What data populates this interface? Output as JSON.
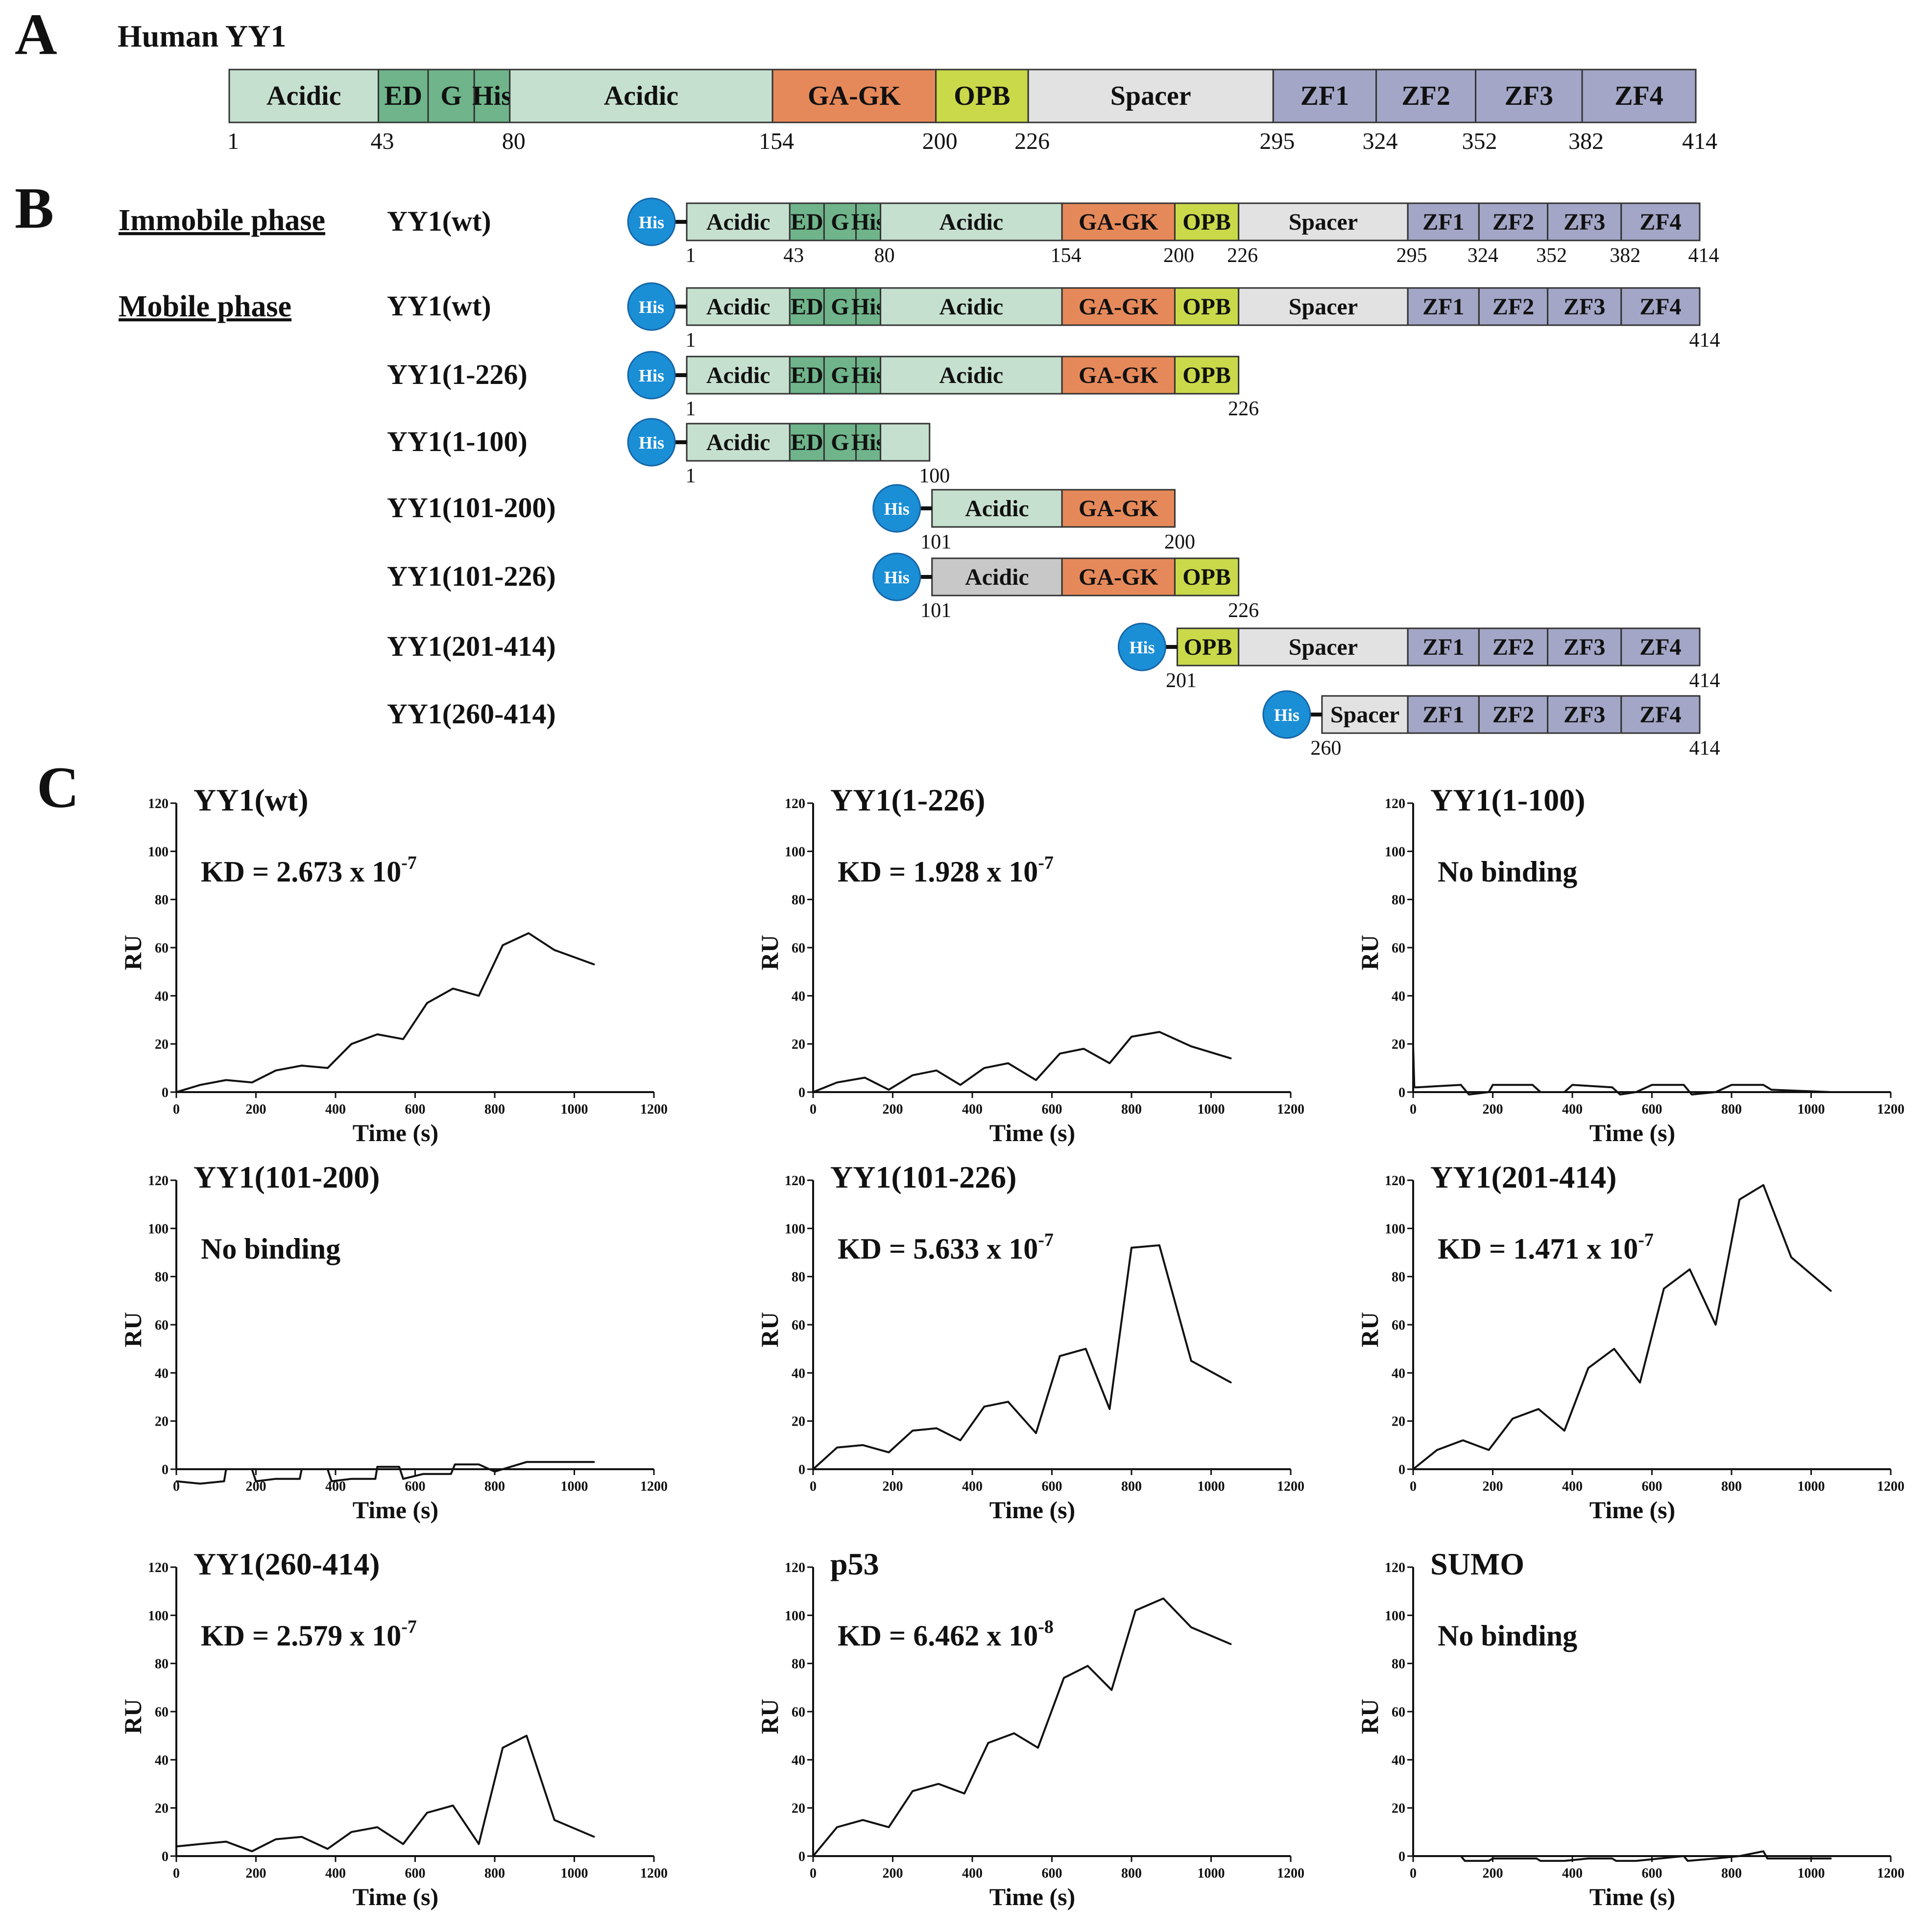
{
  "panel_labels": {
    "a": "A",
    "b": "B",
    "c": "C"
  },
  "panel_a": {
    "title": "Human YY1",
    "domains": [
      {
        "label": "Acidic",
        "start": 1,
        "end": 43,
        "color": "#c6e0cf"
      },
      {
        "label": "ED",
        "start": 43,
        "end": 57,
        "color": "#6fb48a"
      },
      {
        "label": "G",
        "start": 57,
        "end": 70,
        "color": "#6fb48a"
      },
      {
        "label": "His",
        "start": 70,
        "end": 80,
        "color": "#6fb48a"
      },
      {
        "label": "Acidic",
        "start": 80,
        "end": 154,
        "color": "#c6e0cf"
      },
      {
        "label": "GA-GK",
        "start": 154,
        "end": 200,
        "color": "#e6895a"
      },
      {
        "label": "OPB",
        "start": 200,
        "end": 226,
        "color": "#c9d94a"
      },
      {
        "label": "Spacer",
        "start": 226,
        "end": 295,
        "color": "#e2e2e2"
      },
      {
        "label": "ZF1",
        "start": 295,
        "end": 324,
        "color": "#a3a6c6"
      },
      {
        "label": "ZF2",
        "start": 324,
        "end": 352,
        "color": "#a3a6c6"
      },
      {
        "label": "ZF3",
        "start": 352,
        "end": 382,
        "color": "#a3a6c6"
      },
      {
        "label": "ZF4",
        "start": 382,
        "end": 414,
        "color": "#a3a6c6"
      }
    ],
    "positions": [
      "1",
      "43",
      "80",
      "154",
      "200",
      "226",
      "295",
      "324",
      "352",
      "382",
      "414"
    ]
  },
  "panel_b": {
    "immobile_label": "Immobile phase",
    "mobile_label": "Mobile phase",
    "tag_label": "His",
    "constructs": [
      {
        "name": "YY1(wt)",
        "start": 1,
        "end": 414,
        "numbers": [
          "1",
          "43",
          "80",
          "154",
          "200",
          "226",
          "295",
          "324",
          "352",
          "382",
          "414"
        ]
      },
      {
        "name": "YY1(wt)",
        "start": 1,
        "end": 414,
        "numbers": [
          "1",
          "414"
        ]
      },
      {
        "name": "YY1(1-226)",
        "start": 1,
        "end": 226,
        "numbers": [
          "1",
          "226"
        ]
      },
      {
        "name": "YY1(1-100)",
        "start": 1,
        "end": 100,
        "numbers": [
          "1",
          "100"
        ]
      },
      {
        "name": "YY1(101-200)",
        "start": 101,
        "end": 200,
        "numbers": [
          "101",
          "200"
        ]
      },
      {
        "name": "YY1(101-226)",
        "start": 101,
        "end": 226,
        "numbers": [
          "101",
          "226"
        ]
      },
      {
        "name": "YY1(201-414)",
        "start": 201,
        "end": 414,
        "numbers": [
          "201",
          "414"
        ]
      },
      {
        "name": "YY1(260-414)",
        "start": 260,
        "end": 414,
        "numbers": [
          "260",
          "414"
        ]
      }
    ]
  },
  "chart_data": [
    {
      "type": "line",
      "title": "YY1(wt)",
      "annotation": "KD = 2.673 x 10",
      "annotation_exp": "-7",
      "xlabel": "Time (s)",
      "ylabel": "RU",
      "xlim": [
        0,
        1200
      ],
      "ylim": [
        0,
        120
      ],
      "x_ticks": [
        "0",
        "200",
        "400",
        "600",
        "800",
        "1000",
        "1200"
      ],
      "y_ticks": [
        "0",
        "20",
        "40",
        "60",
        "80",
        "100",
        "120"
      ],
      "x": [
        0,
        60,
        125,
        190,
        250,
        315,
        380,
        440,
        505,
        570,
        630,
        695,
        760,
        820,
        885,
        950,
        1050
      ],
      "y": [
        0,
        3,
        5,
        4,
        9,
        11,
        10,
        20,
        24,
        22,
        37,
        43,
        40,
        61,
        66,
        59,
        53
      ]
    },
    {
      "type": "line",
      "title": "YY1(1-226)",
      "annotation": "KD = 1.928 x 10",
      "annotation_exp": "-7",
      "xlabel": "Time (s)",
      "ylabel": "RU",
      "xlim": [
        0,
        1200
      ],
      "ylim": [
        0,
        120
      ],
      "x_ticks": [
        "0",
        "200",
        "400",
        "600",
        "800",
        "1000",
        "1200"
      ],
      "y_ticks": [
        "0",
        "20",
        "40",
        "60",
        "80",
        "100",
        "120"
      ],
      "x": [
        0,
        60,
        130,
        190,
        250,
        310,
        370,
        430,
        490,
        560,
        620,
        680,
        745,
        800,
        870,
        950,
        1050
      ],
      "y": [
        0,
        4,
        6,
        1,
        7,
        9,
        3,
        10,
        12,
        5,
        16,
        18,
        12,
        23,
        25,
        19,
        14
      ]
    },
    {
      "type": "line",
      "title": "YY1(1-100)",
      "annotation": "No binding",
      "annotation_exp": "",
      "xlabel": "Time (s)",
      "ylabel": "RU",
      "xlim": [
        0,
        1200
      ],
      "ylim": [
        0,
        120
      ],
      "x_ticks": [
        "0",
        "200",
        "400",
        "600",
        "800",
        "1000",
        "1200"
      ],
      "y_ticks": [
        "0",
        "20",
        "40",
        "60",
        "80",
        "100",
        "120"
      ],
      "x": [
        0,
        3,
        10,
        120,
        140,
        190,
        200,
        300,
        320,
        380,
        400,
        500,
        520,
        560,
        600,
        680,
        700,
        760,
        800,
        880,
        900,
        1050
      ],
      "y": [
        19,
        2,
        2,
        3,
        -1,
        0,
        3,
        3,
        0,
        0,
        3,
        2,
        -1,
        0,
        3,
        3,
        -1,
        0,
        3,
        3,
        1,
        0
      ]
    },
    {
      "type": "line",
      "title": "YY1(101-200)",
      "annotation": "No binding",
      "annotation_exp": "",
      "xlabel": "Time (s)",
      "ylabel": "RU",
      "xlim": [
        0,
        1200
      ],
      "ylim": [
        0,
        120
      ],
      "x_ticks": [
        "0",
        "200",
        "400",
        "600",
        "800",
        "1000",
        "1200"
      ],
      "y_ticks": [
        "0",
        "20",
        "40",
        "60",
        "80",
        "100",
        "120"
      ],
      "x": [
        0,
        60,
        120,
        125,
        190,
        200,
        250,
        310,
        315,
        380,
        390,
        440,
        500,
        505,
        560,
        570,
        620,
        690,
        700,
        760,
        800,
        880,
        1050
      ],
      "y": [
        -5,
        -6,
        -5,
        0,
        0,
        -5,
        -4,
        -4,
        0,
        0,
        -5,
        -4,
        -4,
        1,
        1,
        -4,
        -2,
        -2,
        2,
        2,
        -1,
        3,
        3
      ]
    },
    {
      "type": "line",
      "title": "YY1(101-226)",
      "annotation": "KD = 5.633 x 10",
      "annotation_exp": "-7",
      "xlabel": "Time (s)",
      "ylabel": "RU",
      "xlim": [
        0,
        1200
      ],
      "ylim": [
        0,
        120
      ],
      "x_ticks": [
        "0",
        "200",
        "400",
        "600",
        "800",
        "1000",
        "1200"
      ],
      "y_ticks": [
        "0",
        "20",
        "40",
        "60",
        "80",
        "100",
        "120"
      ],
      "x": [
        0,
        60,
        125,
        190,
        250,
        310,
        370,
        430,
        490,
        560,
        620,
        685,
        745,
        800,
        870,
        950,
        1050
      ],
      "y": [
        0,
        9,
        10,
        7,
        16,
        17,
        12,
        26,
        28,
        15,
        47,
        50,
        25,
        92,
        93,
        45,
        36
      ]
    },
    {
      "type": "line",
      "title": "YY1(201-414)",
      "annotation": "KD = 1.471 x 10",
      "annotation_exp": "-7",
      "xlabel": "Time (s)",
      "ylabel": "RU",
      "xlim": [
        0,
        1200
      ],
      "ylim": [
        0,
        120
      ],
      "x_ticks": [
        "0",
        "200",
        "400",
        "600",
        "800",
        "1000",
        "1200"
      ],
      "y_ticks": [
        "0",
        "20",
        "40",
        "60",
        "80",
        "100",
        "120"
      ],
      "x": [
        0,
        60,
        125,
        190,
        250,
        315,
        380,
        440,
        505,
        570,
        630,
        695,
        760,
        820,
        880,
        950,
        1050
      ],
      "y": [
        0,
        8,
        12,
        8,
        21,
        25,
        16,
        42,
        50,
        36,
        75,
        83,
        60,
        112,
        118,
        88,
        74
      ]
    },
    {
      "type": "line",
      "title": "YY1(260-414)",
      "annotation": "KD = 2.579 x 10",
      "annotation_exp": "-7",
      "xlabel": "Time (s)",
      "ylabel": "RU",
      "xlim": [
        0,
        1200
      ],
      "ylim": [
        0,
        120
      ],
      "x_ticks": [
        "0",
        "200",
        "400",
        "600",
        "800",
        "1000",
        "1200"
      ],
      "y_ticks": [
        "0",
        "20",
        "40",
        "60",
        "80",
        "100",
        "120"
      ],
      "x": [
        0,
        60,
        125,
        190,
        250,
        315,
        380,
        440,
        505,
        570,
        630,
        695,
        760,
        820,
        880,
        950,
        1050
      ],
      "y": [
        4,
        5,
        6,
        2,
        7,
        8,
        3,
        10,
        12,
        5,
        18,
        21,
        5,
        45,
        50,
        15,
        8
      ]
    },
    {
      "type": "line",
      "title": "p53",
      "annotation": "KD = 6.462 x 10",
      "annotation_exp": "-8",
      "xlabel": "Time (s)",
      "ylabel": "RU",
      "xlim": [
        0,
        1200
      ],
      "ylim": [
        0,
        120
      ],
      "x_ticks": [
        "0",
        "200",
        "400",
        "600",
        "800",
        "1000",
        "1200"
      ],
      "y_ticks": [
        "0",
        "20",
        "40",
        "60",
        "80",
        "100",
        "120"
      ],
      "x": [
        0,
        60,
        125,
        190,
        250,
        315,
        380,
        440,
        505,
        565,
        630,
        690,
        750,
        810,
        880,
        950,
        1050
      ],
      "y": [
        0,
        12,
        15,
        12,
        27,
        30,
        26,
        47,
        51,
        45,
        74,
        79,
        69,
        102,
        107,
        95,
        88
      ]
    },
    {
      "type": "line",
      "title": "SUMO",
      "annotation": "No binding",
      "annotation_exp": "",
      "xlabel": "Time (s)",
      "ylabel": "RU",
      "xlim": [
        0,
        1200
      ],
      "ylim": [
        0,
        120
      ],
      "x_ticks": [
        "0",
        "200",
        "400",
        "600",
        "800",
        "1000",
        "1200"
      ],
      "y_ticks": [
        "0",
        "20",
        "40",
        "60",
        "80",
        "100",
        "120"
      ],
      "x": [
        0,
        120,
        130,
        190,
        200,
        250,
        310,
        320,
        380,
        440,
        500,
        510,
        560,
        620,
        680,
        690,
        760,
        820,
        880,
        890,
        960,
        1050
      ],
      "y": [
        0,
        0,
        -2,
        -2,
        -1,
        -1,
        -1,
        -2,
        -2,
        -1,
        -1,
        -2,
        -2,
        -1,
        0,
        -2,
        -1,
        0,
        2,
        -1,
        -1,
        -1
      ]
    }
  ]
}
